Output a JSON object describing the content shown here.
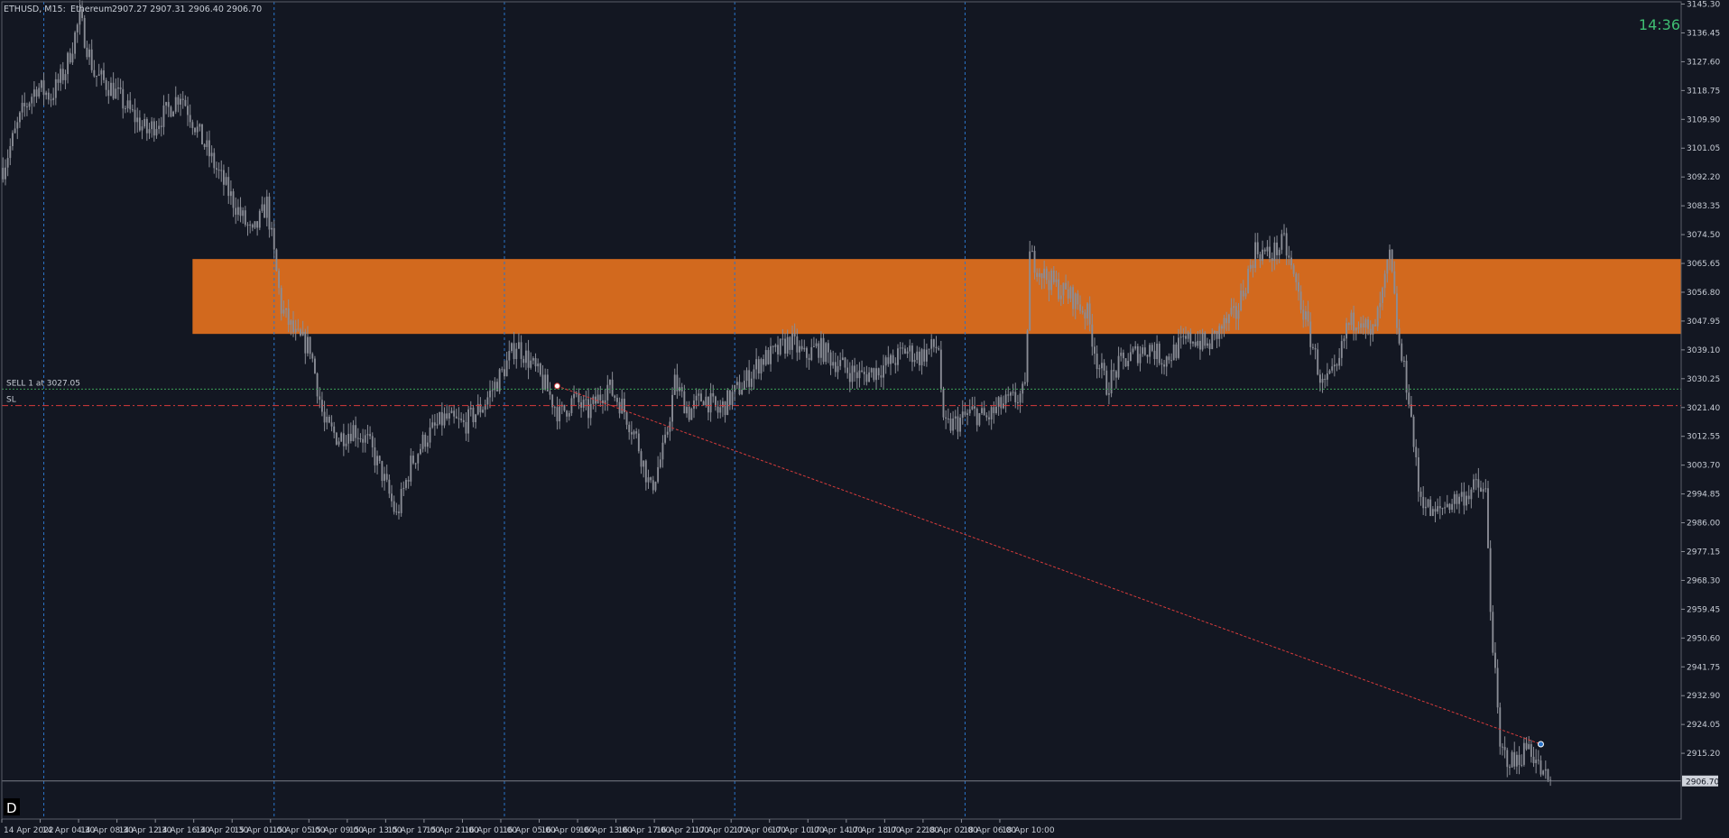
{
  "header": {
    "symbol": "ETHUSD, M15:",
    "name": "Ethereum",
    "ohlc": "2907.27 2907.31 2906.40 2906.70"
  },
  "timer": "14:36",
  "bottom_left_badge": "D",
  "colors": {
    "background": "#131722",
    "candle": "#8a8d96",
    "zone": "#d2691e",
    "grid": "#2a74c9",
    "entry_line": "#3c9f57",
    "stop_line": "#d73b3b",
    "trend_line": "#d73b3b",
    "timer": "#3fbf73",
    "axis": "#c8cdd6"
  },
  "chart_data": {
    "type": "candlestick",
    "title": "ETHUSD, M15:  Ethereum",
    "ylim": [
      2895,
      3146
    ],
    "price_ticks": [
      "3145.30",
      "3136.45",
      "3127.60",
      "3118.75",
      "3109.90",
      "3101.05",
      "3092.20",
      "3083.35",
      "3074.50",
      "3065.65",
      "3056.80",
      "3047.95",
      "3039.10",
      "3030.25",
      "3021.40",
      "3012.55",
      "3003.70",
      "2994.85",
      "2986.00",
      "2977.15",
      "2968.30",
      "2959.45",
      "2950.60",
      "2941.75",
      "2932.90",
      "2924.05",
      "2915.20"
    ],
    "time_ticks": [
      "14 Apr 2022",
      "14 Apr 04:30",
      "14 Apr 08:30",
      "14 Apr 12:30",
      "14 Apr 16:30",
      "14 Apr 20:30",
      "15 Apr 01:00",
      "15 Apr 05:00",
      "15 Apr 09:00",
      "15 Apr 13:00",
      "15 Apr 17:00",
      "15 Apr 21:00",
      "16 Apr 01:00",
      "16 Apr 05:00",
      "16 Apr 09:00",
      "16 Apr 13:00",
      "16 Apr 17:00",
      "16 Apr 21:00",
      "17 Apr 02:00",
      "17 Apr 06:00",
      "17 Apr 10:00",
      "17 Apr 14:00",
      "17 Apr 18:00",
      "17 Apr 22:00",
      "18 Apr 02:00",
      "18 Apr 06:00",
      "18 Apr 10:00"
    ],
    "day_separators": [
      "14 Apr 04:30",
      "15 Apr 05:00",
      "16 Apr 05:00",
      "17 Apr 06:00",
      "18 Apr 06:00"
    ],
    "close_path": [
      {
        "t": 0,
        "p": 3095
      },
      {
        "t": 8,
        "p": 3112
      },
      {
        "t": 14,
        "p": 3120
      },
      {
        "t": 20,
        "p": 3117
      },
      {
        "t": 26,
        "p": 3125
      },
      {
        "t": 32,
        "p": 3141
      },
      {
        "t": 38,
        "p": 3124
      },
      {
        "t": 46,
        "p": 3119
      },
      {
        "t": 52,
        "p": 3113
      },
      {
        "t": 60,
        "p": 3106
      },
      {
        "t": 68,
        "p": 3112
      },
      {
        "t": 74,
        "p": 3118
      },
      {
        "t": 82,
        "p": 3105
      },
      {
        "t": 90,
        "p": 3093
      },
      {
        "t": 98,
        "p": 3082
      },
      {
        "t": 104,
        "p": 3074
      },
      {
        "t": 110,
        "p": 3084
      },
      {
        "t": 116,
        "p": 3052
      },
      {
        "t": 122,
        "p": 3043
      },
      {
        "t": 128,
        "p": 3040
      },
      {
        "t": 134,
        "p": 3016
      },
      {
        "t": 140,
        "p": 3012
      },
      {
        "t": 146,
        "p": 3015
      },
      {
        "t": 152,
        "p": 3011
      },
      {
        "t": 158,
        "p": 3001
      },
      {
        "t": 164,
        "p": 2988
      },
      {
        "t": 170,
        "p": 3004
      },
      {
        "t": 176,
        "p": 3012
      },
      {
        "t": 184,
        "p": 3018
      },
      {
        "t": 192,
        "p": 3016
      },
      {
        "t": 200,
        "p": 3022
      },
      {
        "t": 208,
        "p": 3032
      },
      {
        "t": 214,
        "p": 3041
      },
      {
        "t": 220,
        "p": 3035
      },
      {
        "t": 226,
        "p": 3028
      },
      {
        "t": 232,
        "p": 3019
      },
      {
        "t": 238,
        "p": 3024
      },
      {
        "t": 244,
        "p": 3020
      },
      {
        "t": 252,
        "p": 3028
      },
      {
        "t": 258,
        "p": 3022
      },
      {
        "t": 264,
        "p": 3012
      },
      {
        "t": 270,
        "p": 2996
      },
      {
        "t": 276,
        "p": 3010
      },
      {
        "t": 280,
        "p": 3029
      },
      {
        "t": 286,
        "p": 3020
      },
      {
        "t": 292,
        "p": 3025
      },
      {
        "t": 298,
        "p": 3020
      },
      {
        "t": 304,
        "p": 3025
      },
      {
        "t": 310,
        "p": 3030
      },
      {
        "t": 316,
        "p": 3036
      },
      {
        "t": 322,
        "p": 3038
      },
      {
        "t": 328,
        "p": 3042
      },
      {
        "t": 334,
        "p": 3037
      },
      {
        "t": 340,
        "p": 3040
      },
      {
        "t": 346,
        "p": 3036
      },
      {
        "t": 352,
        "p": 3033
      },
      {
        "t": 358,
        "p": 3031
      },
      {
        "t": 364,
        "p": 3033
      },
      {
        "t": 370,
        "p": 3035
      },
      {
        "t": 376,
        "p": 3039
      },
      {
        "t": 382,
        "p": 3037
      },
      {
        "t": 388,
        "p": 3040
      },
      {
        "t": 390,
        "p": 3040
      },
      {
        "t": 392,
        "p": 3015
      },
      {
        "t": 398,
        "p": 3017
      },
      {
        "t": 404,
        "p": 3020
      },
      {
        "t": 410,
        "p": 3018
      },
      {
        "t": 416,
        "p": 3022
      },
      {
        "t": 422,
        "p": 3024
      },
      {
        "t": 426,
        "p": 3026
      },
      {
        "t": 428,
        "p": 3068
      },
      {
        "t": 434,
        "p": 3062
      },
      {
        "t": 440,
        "p": 3058
      },
      {
        "t": 446,
        "p": 3055
      },
      {
        "t": 452,
        "p": 3050
      },
      {
        "t": 456,
        "p": 3036
      },
      {
        "t": 460,
        "p": 3028
      },
      {
        "t": 466,
        "p": 3035
      },
      {
        "t": 472,
        "p": 3038
      },
      {
        "t": 478,
        "p": 3040
      },
      {
        "t": 484,
        "p": 3036
      },
      {
        "t": 490,
        "p": 3040
      },
      {
        "t": 496,
        "p": 3043
      },
      {
        "t": 502,
        "p": 3040
      },
      {
        "t": 508,
        "p": 3046
      },
      {
        "t": 514,
        "p": 3050
      },
      {
        "t": 518,
        "p": 3060
      },
      {
        "t": 522,
        "p": 3070
      },
      {
        "t": 528,
        "p": 3068
      },
      {
        "t": 534,
        "p": 3072
      },
      {
        "t": 540,
        "p": 3056
      },
      {
        "t": 546,
        "p": 3040
      },
      {
        "t": 550,
        "p": 3028
      },
      {
        "t": 556,
        "p": 3032
      },
      {
        "t": 560,
        "p": 3046
      },
      {
        "t": 566,
        "p": 3050
      },
      {
        "t": 570,
        "p": 3042
      },
      {
        "t": 574,
        "p": 3052
      },
      {
        "t": 578,
        "p": 3068
      },
      {
        "t": 582,
        "p": 3040
      },
      {
        "t": 586,
        "p": 3025
      },
      {
        "t": 590,
        "p": 2996
      },
      {
        "t": 596,
        "p": 2988
      },
      {
        "t": 602,
        "p": 2992
      },
      {
        "t": 608,
        "p": 2994
      },
      {
        "t": 614,
        "p": 2997
      },
      {
        "t": 618,
        "p": 2995
      },
      {
        "t": 620,
        "p": 2960
      },
      {
        "t": 624,
        "p": 2916
      },
      {
        "t": 630,
        "p": 2912
      },
      {
        "t": 636,
        "p": 2918
      },
      {
        "t": 642,
        "p": 2908
      },
      {
        "t": 645,
        "p": 2906.7
      }
    ],
    "sell_position": {
      "label": "SELL 1 at 3027.05",
      "price": 3027.05
    },
    "stop_loss": {
      "label": "SL",
      "price": 3022.0
    },
    "current_price": {
      "label": "2906.70",
      "price": 2906.7
    },
    "resistance_zone": {
      "from_time": 79,
      "price_top": 3067.0,
      "price_bottom": 3044.0
    },
    "trade_line": {
      "from": {
        "t": 231,
        "p": 3028.0
      },
      "to": {
        "t": 641,
        "p": 2918.0
      }
    }
  }
}
